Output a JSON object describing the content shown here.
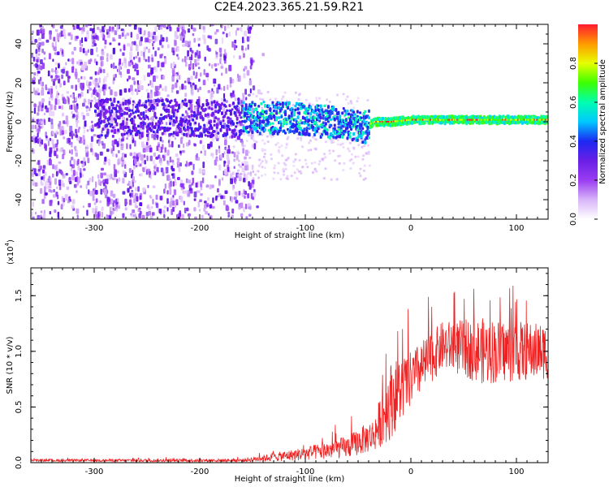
{
  "title": "C2E4.2023.365.21.59.R21",
  "chart_data": [
    {
      "type": "heatmap",
      "xlabel": "Height of straight line (km)",
      "ylabel": "Frequency (Hz)",
      "xlim": [
        -360,
        130
      ],
      "ylim": [
        -50,
        50
      ],
      "x_ticks": [
        -300,
        -200,
        -100,
        0,
        100
      ],
      "y_ticks": [
        -40,
        -20,
        0,
        20,
        40
      ],
      "colorbar": {
        "label": "Normalized spectral amplitude",
        "range": [
          0.0,
          1.0
        ],
        "ticks": [
          0.0,
          0.2,
          0.4,
          0.6,
          0.8
        ],
        "tick_labels": [
          "0.0",
          "0.2",
          "0.4",
          "0.6",
          "0.8"
        ],
        "colors": [
          "#ffffff",
          "#d8b4f8",
          "#9a3cf2",
          "#6a1fe6",
          "#1c28f2",
          "#00c8ff",
          "#00ffb0",
          "#3cff00",
          "#e6ff00",
          "#ff9a00",
          "#ff1a30"
        ]
      },
      "trace": [
        {
          "x": -360,
          "y": 2
        },
        {
          "x": -160,
          "y": 2
        },
        {
          "x": -120,
          "y": 2
        },
        {
          "x": -100,
          "y": 1
        },
        {
          "x": -80,
          "y": 0
        },
        {
          "x": -55,
          "y": -2
        },
        {
          "x": -45,
          "y": -3
        },
        {
          "x": -35,
          "y": 0
        },
        {
          "x": -20,
          "y": 0
        },
        {
          "x": 0,
          "y": 1
        },
        {
          "x": 50,
          "y": 1
        },
        {
          "x": 130,
          "y": 1
        }
      ]
    },
    {
      "type": "line",
      "xlabel": "Height of straight line (km)",
      "ylabel": "SNR (10 * v/v)",
      "multiplier": "(x10",
      "multiplier_exp": "4",
      "multiplier_close": ")",
      "xlim": [
        -360,
        130
      ],
      "ylim": [
        0,
        1.75
      ],
      "x_ticks": [
        -300,
        -200,
        -100,
        0,
        100
      ],
      "y_ticks": [
        0.0,
        0.5,
        1.0,
        1.5
      ],
      "y_tick_labels": [
        "0.0",
        "0.5",
        "1.0",
        "1.5"
      ],
      "color": "#ee2222",
      "envelope": [
        {
          "x": -360,
          "mean": 0.02,
          "spread": 0.01
        },
        {
          "x": -160,
          "mean": 0.02,
          "spread": 0.015
        },
        {
          "x": -140,
          "mean": 0.04,
          "spread": 0.03
        },
        {
          "x": -100,
          "mean": 0.08,
          "spread": 0.06
        },
        {
          "x": -60,
          "mean": 0.14,
          "spread": 0.1
        },
        {
          "x": -35,
          "mean": 0.25,
          "spread": 0.15
        },
        {
          "x": -20,
          "mean": 0.55,
          "spread": 0.35
        },
        {
          "x": 0,
          "mean": 0.75,
          "spread": 0.25
        },
        {
          "x": 30,
          "mean": 1.05,
          "spread": 0.22
        },
        {
          "x": 70,
          "mean": 1.0,
          "spread": 0.3
        },
        {
          "x": 130,
          "mean": 1.0,
          "spread": 0.25
        }
      ]
    }
  ]
}
